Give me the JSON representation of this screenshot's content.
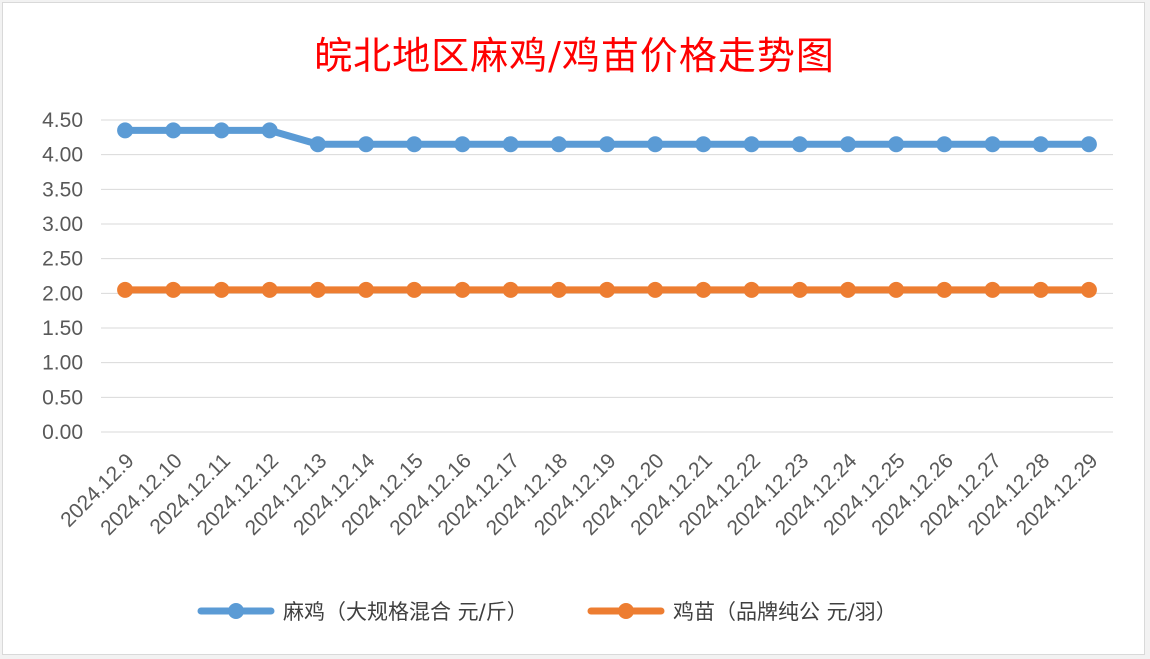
{
  "chart_data": {
    "type": "line",
    "title": "皖北地区麻鸡/鸡苗价格走势图",
    "xlabel": "",
    "ylabel": "",
    "ylim": [
      0,
      4.5
    ],
    "yticks": [
      "0.00",
      "0.50",
      "1.00",
      "1.50",
      "2.00",
      "2.50",
      "3.00",
      "3.50",
      "4.00",
      "4.50"
    ],
    "categories": [
      "2024.12.9",
      "2024.12.10",
      "2024.12.11",
      "2024.12.12",
      "2024.12.13",
      "2024.12.14",
      "2024.12.15",
      "2024.12.16",
      "2024.12.17",
      "2024.12.18",
      "2024.12.19",
      "2024.12.20",
      "2024.12.21",
      "2024.12.22",
      "2024.12.23",
      "2024.12.24",
      "2024.12.25",
      "2024.12.26",
      "2024.12.27",
      "2024.12.28",
      "2024.12.29"
    ],
    "series": [
      {
        "name": "麻鸡（大规格混合 元/斤）",
        "color": "#5b9bd5",
        "values": [
          4.35,
          4.35,
          4.35,
          4.35,
          4.15,
          4.15,
          4.15,
          4.15,
          4.15,
          4.15,
          4.15,
          4.15,
          4.15,
          4.15,
          4.15,
          4.15,
          4.15,
          4.15,
          4.15,
          4.15,
          4.15
        ]
      },
      {
        "name": "鸡苗（品牌纯公 元/羽）",
        "color": "#ed7d31",
        "values": [
          2.05,
          2.05,
          2.05,
          2.05,
          2.05,
          2.05,
          2.05,
          2.05,
          2.05,
          2.05,
          2.05,
          2.05,
          2.05,
          2.05,
          2.05,
          2.05,
          2.05,
          2.05,
          2.05,
          2.05,
          2.05
        ]
      }
    ],
    "grid": true,
    "legend": "bottom"
  }
}
